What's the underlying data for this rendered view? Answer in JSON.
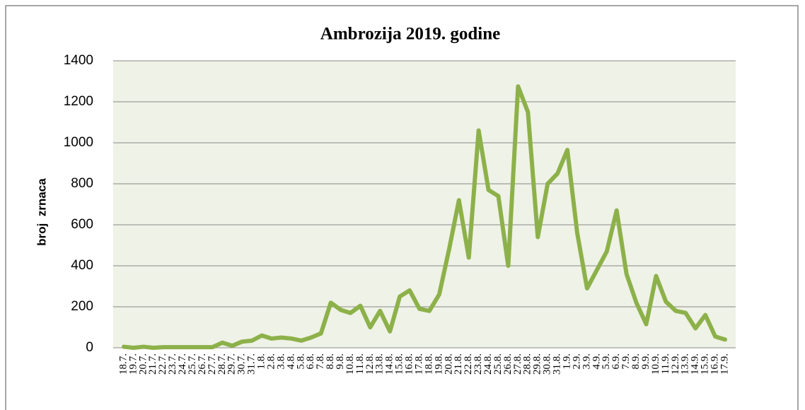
{
  "chart_data": {
    "type": "line",
    "title": "Ambrozija 2019. godine",
    "ylabel": "broj  zrnaca",
    "categories": [
      "18.7.",
      "19.7.",
      "20.7.",
      "21.7.",
      "22.7.",
      "23.7.",
      "24.7.",
      "25.7.",
      "26.7.",
      "27.7.",
      "28.7.",
      "29.7.",
      "30.7.",
      "31.7.",
      "1.8.",
      "2.8.",
      "3.8.",
      "4.8.",
      "5.8.",
      "6.8.",
      "7.8.",
      "8.8.",
      "9.8.",
      "10.8.",
      "11.8.",
      "12.8.",
      "13.8.",
      "14.8.",
      "15.8.",
      "16.8.",
      "17.8.",
      "18.8.",
      "19.8.",
      "20.8.",
      "21.8.",
      "22.8.",
      "23.8.",
      "24.8.",
      "25.8.",
      "26.8.",
      "27.8.",
      "28.8.",
      "29.8.",
      "30.8.",
      "31.8.",
      "1.9.",
      "2.9.",
      "3.9.",
      "4.9.",
      "5.9.",
      "6.9.",
      "7.9.",
      "8.9.",
      "9.9.",
      "10.9.",
      "11.9.",
      "12.9.",
      "13.9.",
      "14.9.",
      "15.9.",
      "16.9.",
      "17.9."
    ],
    "series": [
      {
        "name": "Ambrozija",
        "color": "#8db14a",
        "values": [
          5,
          0,
          5,
          0,
          3,
          3,
          3,
          3,
          3,
          3,
          25,
          10,
          30,
          35,
          60,
          45,
          50,
          45,
          35,
          50,
          70,
          220,
          185,
          170,
          205,
          100,
          180,
          80,
          250,
          280,
          190,
          180,
          260,
          480,
          720,
          440,
          1060,
          770,
          740,
          400,
          1275,
          1150,
          540,
          800,
          850,
          965,
          560,
          290,
          380,
          470,
          670,
          360,
          220,
          115,
          350,
          225,
          180,
          170,
          95,
          160,
          55,
          40
        ]
      }
    ],
    "ylim": [
      0,
      1400
    ],
    "yticks": [
      0,
      200,
      400,
      600,
      800,
      1000,
      1200,
      1400
    ],
    "grid": true
  }
}
